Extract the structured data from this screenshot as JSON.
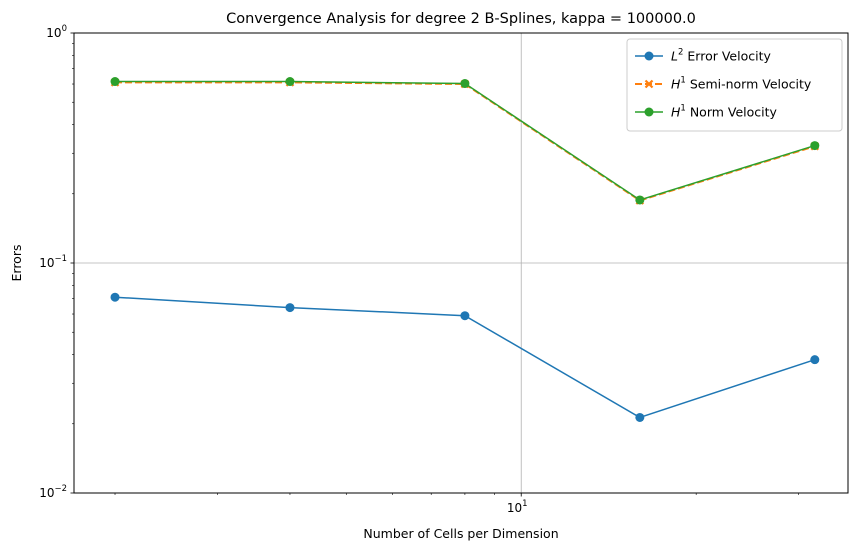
{
  "chart_data": {
    "type": "line",
    "title": "Convergence Analysis for degree 2 B-Splines, kappa = 100000.0",
    "xlabel": "Number of Cells per Dimension",
    "ylabel": "Errors",
    "xscale": "log",
    "yscale": "log",
    "xlim": [
      1.7,
      36.5
    ],
    "ylim": [
      0.01,
      1
    ],
    "x": [
      2,
      4,
      8,
      16,
      32
    ],
    "x_ticks": [
      {
        "value": 10,
        "base": "10",
        "exp": "1"
      }
    ],
    "y_ticks": [
      {
        "value": 0.01,
        "base": "10",
        "exp": "−2"
      },
      {
        "value": 0.1,
        "base": "10",
        "exp": "−1"
      },
      {
        "value": 1,
        "base": "10",
        "exp": "0"
      }
    ],
    "grid": true,
    "legend_position": "upper right",
    "series": [
      {
        "name": "Error Velocity",
        "name_prefix": "L",
        "name_sup": "2",
        "values": [
          0.071,
          0.064,
          0.059,
          0.0213,
          0.038
        ],
        "color": "#1f77b4",
        "marker": "circle",
        "dashed": false
      },
      {
        "name": "Semi-norm Velocity",
        "name_prefix": "H",
        "name_sup": "1",
        "values": [
          0.61,
          0.61,
          0.6,
          0.187,
          0.322
        ],
        "color": "#ff7f0e",
        "marker": "x",
        "dashed": true
      },
      {
        "name": "Norm Velocity",
        "name_prefix": "H",
        "name_sup": "1",
        "values": [
          0.615,
          0.615,
          0.603,
          0.188,
          0.324
        ],
        "color": "#2ca02c",
        "marker": "circle",
        "dashed": false
      }
    ]
  }
}
